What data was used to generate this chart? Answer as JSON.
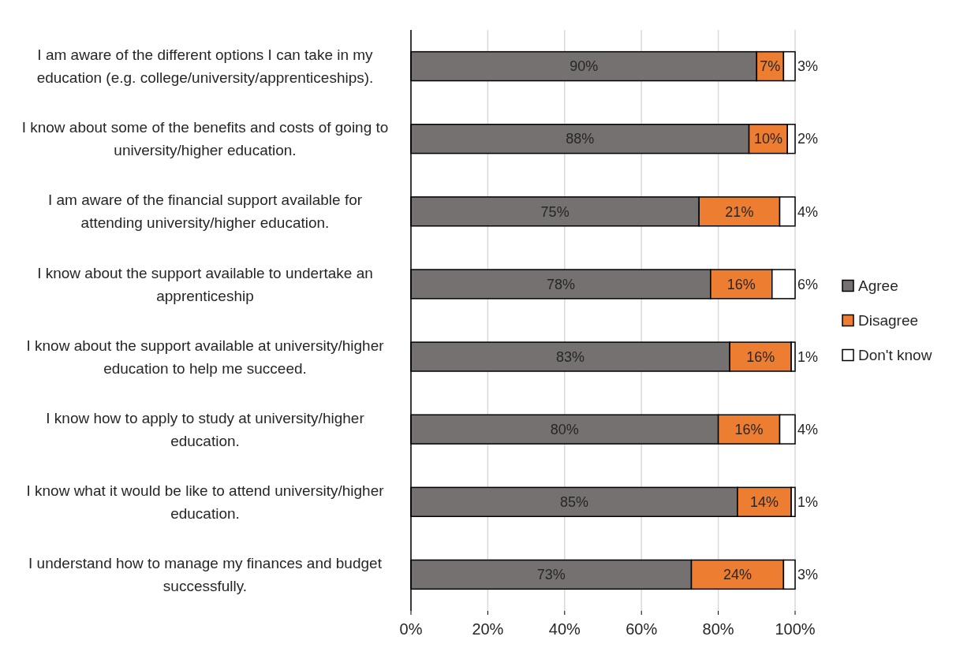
{
  "chart_data": {
    "type": "bar",
    "orientation": "horizontal",
    "stacked": true,
    "categories": [
      "I am aware of the different options I can take in my education (e.g. college/university/apprenticeships).",
      "I know about some of the benefits and costs of going to university/higher education.",
      "I am aware of the financial support available for attending university/higher education.",
      "I know about the support available to undertake an apprenticeship",
      "I know about the support available at university/higher education to help me succeed.",
      "I know how to apply to study at university/higher education.",
      "I know what it would be like to attend university/higher education.",
      "I understand how to manage my finances and budget successfully."
    ],
    "series": [
      {
        "name": "Agree",
        "color": "#767171",
        "values": [
          90,
          88,
          75,
          78,
          83,
          80,
          85,
          73
        ],
        "value_labels": [
          "90%",
          "88%",
          "75%",
          "78%",
          "83%",
          "80%",
          "85%",
          "73%"
        ]
      },
      {
        "name": "Disagree",
        "color": "#ed7d31",
        "values": [
          7,
          10,
          21,
          16,
          16,
          16,
          14,
          24
        ],
        "value_labels": [
          "7%",
          "10%",
          "21%",
          "16%",
          "16%",
          "16%",
          "14%",
          "24%"
        ]
      },
      {
        "name": "Don't know",
        "color": "#ffffff",
        "values": [
          3,
          2,
          4,
          6,
          1,
          4,
          1,
          3
        ],
        "value_labels": [
          "3%",
          "2%",
          "4%",
          "6%",
          "1%",
          "4%",
          "1%",
          "3%"
        ]
      }
    ],
    "xlim": [
      0,
      100
    ],
    "xticks": [
      {
        "value": 0,
        "label": "0%"
      },
      {
        "value": 20,
        "label": "20%"
      },
      {
        "value": 40,
        "label": "40%"
      },
      {
        "value": 60,
        "label": "60%"
      },
      {
        "value": 80,
        "label": "80%"
      },
      {
        "value": 100,
        "label": "100%"
      }
    ],
    "grid": "x",
    "legend": "right"
  }
}
